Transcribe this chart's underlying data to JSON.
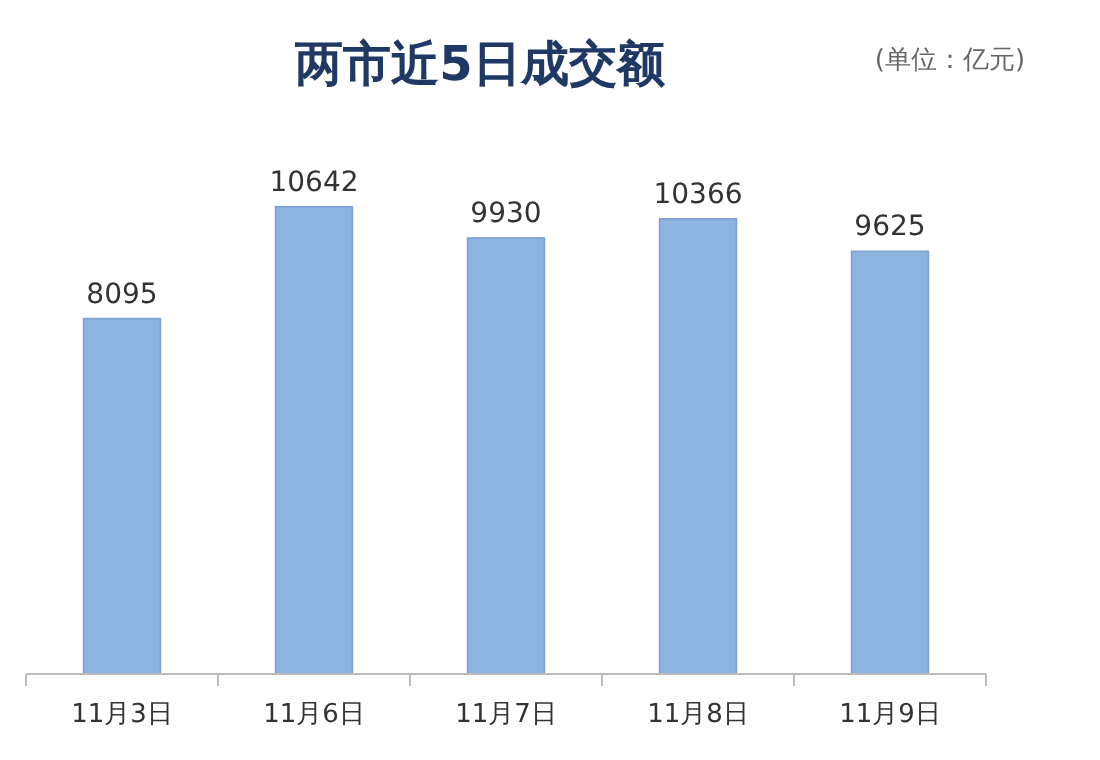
{
  "chart_data": {
    "type": "bar",
    "title": "两市近5日成交额",
    "annotations": [
      "(单位：亿元)"
    ],
    "categories": [
      "11月3日",
      "11月6日",
      "11月7日",
      "11月8日",
      "11月9日"
    ],
    "values": [
      8095,
      10642,
      9930,
      10366,
      9625
    ],
    "color": "#8fb3e0",
    "data_labels": true
  }
}
